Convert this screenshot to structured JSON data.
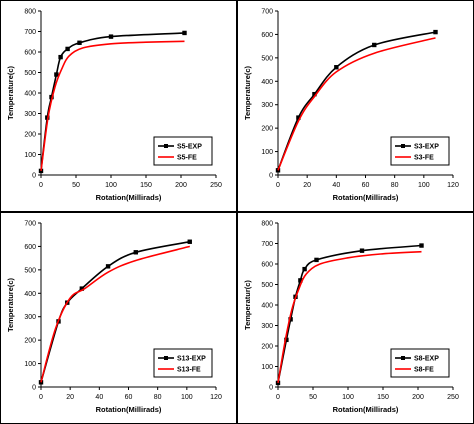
{
  "chart_data": [
    {
      "type": "line",
      "xlabel": "Rotation(Millirads)",
      "ylabel": "Temperature(c)",
      "xlim": [
        0,
        250
      ],
      "ylim": [
        0,
        800
      ],
      "xticks": [
        0,
        50,
        100,
        150,
        200,
        250
      ],
      "yticks": [
        0,
        100,
        200,
        300,
        400,
        500,
        600,
        700,
        800
      ],
      "legend_position": "bottom-right",
      "series": [
        {
          "name": "S5-EXP",
          "color": "#000000",
          "markers": true,
          "x": [
            0,
            9,
            15,
            22,
            28,
            38,
            55,
            100,
            205
          ],
          "y": [
            20,
            280,
            380,
            490,
            575,
            615,
            645,
            675,
            693
          ]
        },
        {
          "name": "S5-FE",
          "color": "#ff0000",
          "markers": false,
          "x": [
            0,
            10,
            20,
            30,
            40,
            60,
            100,
            150,
            205
          ],
          "y": [
            20,
            280,
            430,
            520,
            580,
            620,
            640,
            648,
            652
          ]
        }
      ]
    },
    {
      "type": "line",
      "xlabel": "Rotation(Millirads)",
      "ylabel": "Temperature(c)",
      "xlim": [
        0,
        120
      ],
      "ylim": [
        0,
        700
      ],
      "xticks": [
        0,
        20,
        40,
        60,
        80,
        100,
        120
      ],
      "yticks": [
        0,
        100,
        200,
        300,
        400,
        500,
        600,
        700
      ],
      "legend_position": "bottom-right",
      "series": [
        {
          "name": "S3-EXP",
          "color": "#000000",
          "markers": true,
          "x": [
            0,
            14,
            25,
            40,
            66,
            108
          ],
          "y": [
            20,
            245,
            345,
            460,
            555,
            610
          ]
        },
        {
          "name": "S3-FE",
          "color": "#ff0000",
          "markers": false,
          "x": [
            0,
            14,
            25,
            40,
            66,
            108
          ],
          "y": [
            20,
            230,
            335,
            440,
            520,
            585
          ]
        }
      ]
    },
    {
      "type": "line",
      "xlabel": "Rotation(Millirads)",
      "ylabel": "Temperature(c)",
      "xlim": [
        0,
        120
      ],
      "ylim": [
        0,
        700
      ],
      "xticks": [
        0,
        20,
        40,
        60,
        80,
        100,
        120
      ],
      "yticks": [
        0,
        100,
        200,
        300,
        400,
        500,
        600,
        700
      ],
      "legend_position": "bottom-right",
      "series": [
        {
          "name": "S13-EXP",
          "color": "#000000",
          "markers": true,
          "x": [
            0,
            12,
            18,
            28,
            46,
            65,
            102
          ],
          "y": [
            20,
            280,
            360,
            420,
            515,
            575,
            620
          ]
        },
        {
          "name": "S13-FE",
          "color": "#ff0000",
          "markers": false,
          "x": [
            0,
            10,
            20,
            30,
            46,
            65,
            102
          ],
          "y": [
            20,
            250,
            380,
            420,
            490,
            540,
            600
          ]
        }
      ]
    },
    {
      "type": "line",
      "xlabel": "Rotation(Millirads)",
      "ylabel": "Temperatur(c)",
      "xlim": [
        0,
        250
      ],
      "ylim": [
        0,
        800
      ],
      "xticks": [
        0,
        50,
        100,
        150,
        200,
        250
      ],
      "yticks": [
        0,
        100,
        200,
        300,
        400,
        500,
        600,
        700,
        800
      ],
      "legend_position": "bottom-right",
      "series": [
        {
          "name": "S8-EXP",
          "color": "#000000",
          "markers": true,
          "x": [
            0,
            12,
            18,
            25,
            32,
            38,
            55,
            120,
            205
          ],
          "y": [
            20,
            230,
            330,
            440,
            520,
            575,
            620,
            665,
            690
          ]
        },
        {
          "name": "S8-FE",
          "color": "#ff0000",
          "markers": false,
          "x": [
            0,
            10,
            20,
            30,
            40,
            60,
            100,
            150,
            205
          ],
          "y": [
            20,
            220,
            380,
            480,
            550,
            600,
            630,
            650,
            660
          ]
        }
      ]
    }
  ]
}
